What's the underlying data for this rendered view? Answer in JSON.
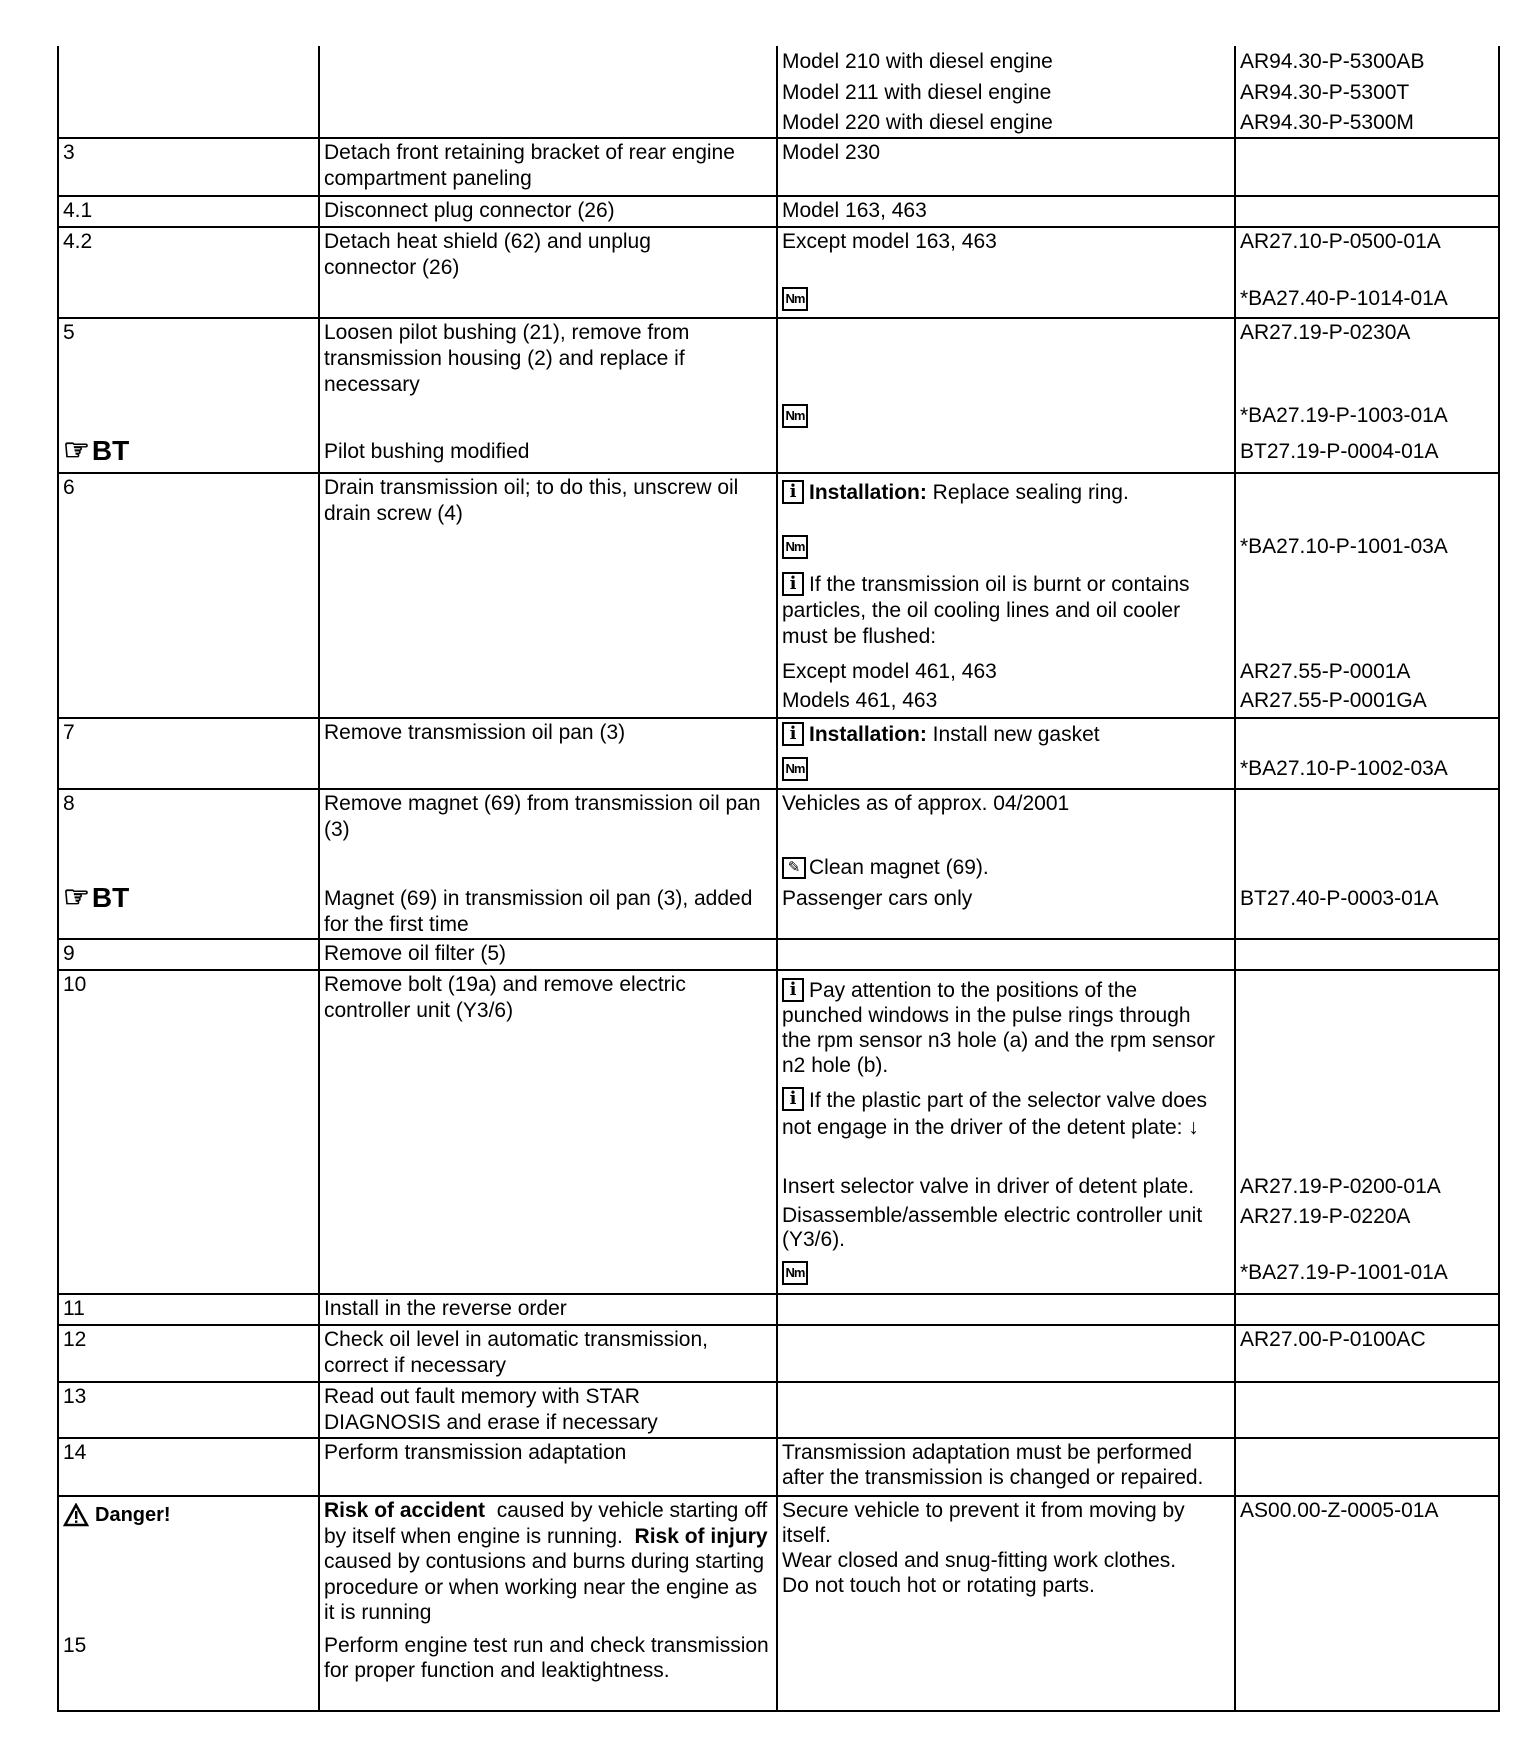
{
  "rows": [
    {
      "step": "",
      "c3": [
        "Model 210 with diesel engine",
        "Model 211 with diesel engine",
        "Model 220 with diesel engine"
      ],
      "c4": [
        "AR94.30-P-5300AB",
        "AR94.30-P-5300T",
        "AR94.30-P-5300M"
      ]
    },
    {
      "step": "3",
      "c2": "Detach front retaining bracket of rear engine compartment paneling",
      "c3": "Model 230"
    },
    {
      "step": "4.1",
      "c2": "Disconnect plug connector (26)",
      "c3": "Model 163, 463"
    },
    {
      "step": "4.2",
      "c2": "Detach heat shield (62) and unplug connector (26)",
      "c3": "Except model 163, 463",
      "c4": [
        "AR27.10-P-0500-01A",
        "*BA27.40-P-1014-01A"
      ]
    },
    {
      "step": "5",
      "c2": "Loosen pilot bushing (21), remove from transmission housing (2) and replace if necessary",
      "bt_label": "BT",
      "c2b": "Pilot bushing modified",
      "c4": [
        "AR27.19-P-0230A",
        "*BA27.19-P-1003-01A",
        "BT27.19-P-0004-01A"
      ]
    },
    {
      "step": "6",
      "c2": "Drain transmission oil; to do this, unscrew oil drain screw (4)",
      "c3_bold": "Installation:",
      "c3_a": " Replace sealing ring.",
      "c3_b": "If the transmission oil is burnt or contains particles, the oil cooling lines and oil cooler must be flushed:",
      "c3_c": "Except model 461, 463",
      "c3_d": "Models 461, 463",
      "c4": [
        "*BA27.10-P-1001-03A",
        "AR27.55-P-0001A",
        "AR27.55-P-0001GA"
      ]
    },
    {
      "step": "7",
      "c2": "Remove transmission oil pan (3)",
      "c3_bold": "Installation:",
      "c3_a": " Install new gasket",
      "c4": [
        "*BA27.10-P-1002-03A"
      ]
    },
    {
      "step": "8",
      "c2": "Remove magnet (69) from transmission oil pan (3)",
      "bt_label": "BT",
      "c2b": "Magnet (69) in transmission oil pan (3), added for the first time",
      "c3_a": "Vehicles as of approx. 04/2001",
      "c3_b": "Clean magnet (69).",
      "c3_c": "Passenger cars only",
      "c4": [
        "BT27.40-P-0003-01A"
      ]
    },
    {
      "step": "9",
      "c2": "Remove oil filter (5)"
    },
    {
      "step": "10",
      "c2": "Remove bolt (19a) and remove electric controller unit (Y3/6)",
      "c3_a": "Pay attention to the positions of the punched windows in the pulse rings through the rpm sensor n3 hole (a) and the rpm sensor n2 hole (b).",
      "c3_b": "If the plastic part of the selector valve does not engage in the driver of the detent plate: ↓",
      "c3_c": "Insert selector valve in driver of detent plate.",
      "c3_d": "Disassemble/assemble electric controller unit (Y3/6).",
      "c4": [
        "AR27.19-P-0200-01A",
        "AR27.19-P-0220A",
        "*BA27.19-P-1001-01A"
      ]
    },
    {
      "step": "11",
      "c2": "Install in the reverse order"
    },
    {
      "step": "12",
      "c2": "Check oil level in automatic transmission, correct if necessary",
      "c4": [
        "AR27.00-P-0100AC"
      ]
    },
    {
      "step": "13",
      "c2": "Read out fault memory with STAR DIAGNOSIS and erase if necessary"
    },
    {
      "step": "14",
      "c2": "Perform transmission adaptation",
      "c3": "Transmission adaptation must be performed after the transmission is changed or repaired."
    },
    {
      "danger_label": "Danger!",
      "c2_b1": "Risk of accident",
      "c2_t1": "  caused by vehicle starting off by itself when engine is running.  ",
      "c2_b2": "Risk of injury",
      "c2_t2": " caused by contusions and burns during starting procedure or when working near the engine as it is running",
      "step": "15",
      "c2b": "Perform engine test run and check transmission for proper function and leaktightness.",
      "c3_a": "Secure vehicle to prevent it from moving by itself.",
      "c3_b": "Wear closed and snug-fitting work clothes.",
      "c3_c": "Do not touch hot or rotating parts.",
      "c4": [
        "AS00.00-Z-0005-01A"
      ]
    }
  ],
  "icons": {
    "nm": "Nm",
    "info": "i",
    "hand": "☞",
    "clean": "✎"
  }
}
